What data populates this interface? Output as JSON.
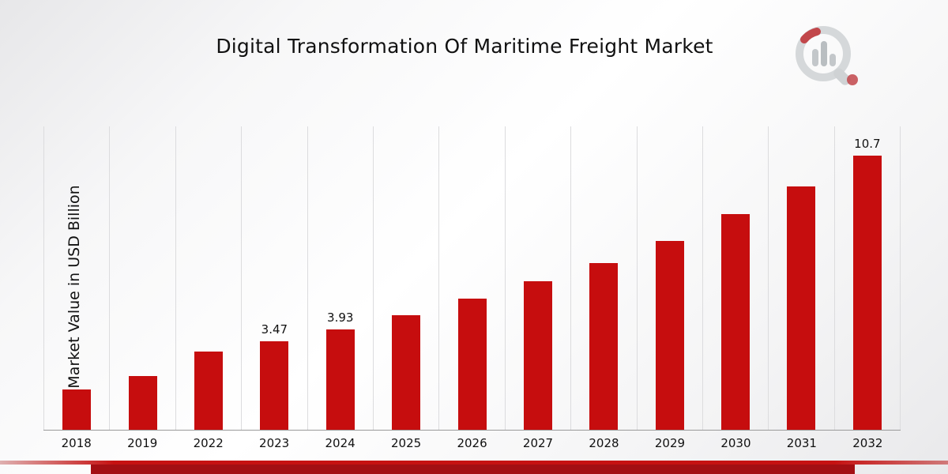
{
  "title": "Digital Transformation Of Maritime Freight Market",
  "ylabel": "Market Value in USD Billion",
  "brand": {
    "logo": "market-research-magnifier-logo"
  },
  "colors": {
    "bar": "#c60d0e",
    "stripe": "#c61212",
    "footer_bar": "#a30f13",
    "gridline": "#dcdcde",
    "axis_line": "#9a9a9a",
    "text": "#111111"
  },
  "chart_data": {
    "type": "bar",
    "title": "Digital Transformation Of Maritime Freight Market",
    "xlabel": "",
    "ylabel": "Market Value in USD Billion",
    "categories": [
      "2018",
      "2019",
      "2022",
      "2023",
      "2024",
      "2025",
      "2026",
      "2027",
      "2028",
      "2029",
      "2030",
      "2031",
      "2032"
    ],
    "values": [
      1.57,
      2.09,
      3.05,
      3.47,
      3.93,
      4.49,
      5.11,
      5.81,
      6.52,
      7.38,
      8.43,
      9.5,
      10.7
    ],
    "value_labels": [
      "",
      "",
      "",
      "3.47",
      "3.93",
      "",
      "",
      "",
      "",
      "",
      "",
      "",
      "10.7"
    ],
    "ylim": [
      0,
      11.85
    ],
    "bar_color": "#c60d0e",
    "grid": "vertical-only",
    "legend": "none",
    "unit": "USD Billion"
  }
}
